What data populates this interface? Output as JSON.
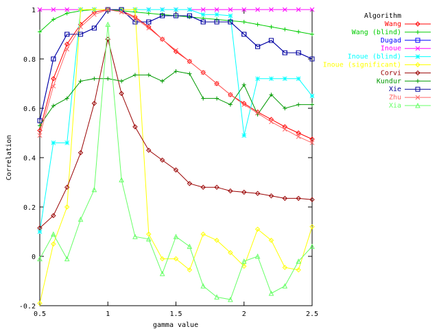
{
  "chart_data": {
    "type": "line",
    "xlabel": "gamma value",
    "ylabel": "Correlation",
    "xlim": [
      0.5,
      2.5
    ],
    "ylim": [
      -0.2,
      1.0
    ],
    "xticks": [
      "0.5",
      "1",
      "1.5",
      "2",
      "2.5"
    ],
    "yticks": [
      "-0.2",
      "0",
      "0.2",
      "0.4",
      "0.6",
      "0.8",
      "1"
    ],
    "legend_title": "Algorithm",
    "legend_position": "top-right",
    "grid": false,
    "x": [
      0.5,
      0.6,
      0.7,
      0.8,
      0.9,
      1.0,
      1.1,
      1.2,
      1.3,
      1.4,
      1.5,
      1.6,
      1.7,
      1.8,
      1.9,
      2.0,
      2.1,
      2.2,
      2.3,
      2.4,
      2.5
    ],
    "series": [
      {
        "name": "Wang",
        "color": "#ff0000",
        "marker": "diamond",
        "values": [
          0.51,
          0.72,
          0.86,
          0.94,
          0.99,
          1.0,
          0.995,
          0.97,
          0.93,
          0.88,
          0.83,
          0.79,
          0.745,
          0.7,
          0.655,
          0.62,
          0.585,
          0.555,
          0.525,
          0.5,
          0.475
        ]
      },
      {
        "name": "Wang (blind)",
        "color": "#00cc00",
        "marker": "plus",
        "values": [
          0.91,
          0.96,
          0.985,
          0.995,
          1.0,
          1.0,
          0.995,
          0.99,
          0.985,
          0.98,
          0.975,
          0.97,
          0.965,
          0.96,
          0.955,
          0.95,
          0.94,
          0.93,
          0.92,
          0.91,
          0.9
        ]
      },
      {
        "name": "Dugad",
        "color": "#0000ff",
        "marker": "square",
        "values": [
          0.55,
          0.8,
          0.9,
          0.9,
          0.925,
          1.0,
          1.0,
          0.95,
          0.95,
          0.975,
          0.975,
          0.975,
          0.95,
          0.95,
          0.95,
          0.9,
          0.85,
          0.875,
          0.825,
          0.825,
          0.8
        ]
      },
      {
        "name": "Inoue",
        "color": "#ff00ff",
        "marker": "cross",
        "values": [
          1.0,
          1.0,
          1.0,
          1.0,
          1.0,
          1.0,
          1.0,
          1.0,
          1.0,
          1.0,
          1.0,
          1.0,
          1.0,
          1.0,
          1.0,
          1.0,
          1.0,
          1.0,
          1.0,
          1.0,
          1.0
        ]
      },
      {
        "name": "Inoue (blind)",
        "color": "#00ffff",
        "marker": "star",
        "values": [
          0.1,
          0.46,
          0.46,
          1.0,
          1.0,
          1.0,
          1.0,
          1.0,
          1.0,
          1.0,
          1.0,
          1.0,
          0.98,
          0.98,
          0.975,
          0.49,
          0.72,
          0.72,
          0.72,
          0.72,
          0.65
        ]
      },
      {
        "name": "Inoue (significant)",
        "color": "#ffff00",
        "marker": "diamond",
        "values": [
          -0.19,
          0.05,
          0.2,
          1.0,
          1.0,
          1.0,
          1.0,
          1.0,
          0.09,
          -0.01,
          -0.01,
          -0.055,
          0.09,
          0.065,
          0.015,
          -0.04,
          0.11,
          0.065,
          -0.045,
          -0.055,
          0.12
        ]
      },
      {
        "name": "Corvi",
        "color": "#990000",
        "marker": "diamond",
        "values": [
          0.115,
          0.165,
          0.28,
          0.42,
          0.62,
          0.88,
          0.66,
          0.525,
          0.43,
          0.39,
          0.35,
          0.295,
          0.28,
          0.28,
          0.265,
          0.26,
          0.255,
          0.245,
          0.235,
          0.235,
          0.23
        ]
      },
      {
        "name": "Kundur",
        "color": "#009900",
        "marker": "plus",
        "values": [
          0.53,
          0.61,
          0.64,
          0.71,
          0.72,
          0.72,
          0.71,
          0.735,
          0.735,
          0.71,
          0.75,
          0.74,
          0.64,
          0.64,
          0.615,
          0.695,
          0.575,
          0.655,
          0.6,
          0.615,
          0.615
        ]
      },
      {
        "name": "Xie",
        "color": "#000099",
        "marker": "square",
        "values": [
          0.55,
          0.8,
          0.9,
          0.9,
          0.925,
          1.0,
          1.0,
          0.95,
          0.95,
          0.975,
          0.975,
          0.975,
          0.95,
          0.95,
          0.95,
          0.9,
          0.85,
          0.875,
          0.825,
          0.825,
          0.8
        ]
      },
      {
        "name": "Zhu",
        "color": "#ff6666",
        "marker": "cross",
        "values": [
          0.49,
          0.69,
          0.84,
          0.93,
          0.98,
          1.0,
          0.99,
          0.965,
          0.925,
          0.88,
          0.835,
          0.79,
          0.745,
          0.7,
          0.655,
          0.615,
          0.58,
          0.545,
          0.515,
          0.485,
          0.46
        ]
      },
      {
        "name": "Xia",
        "color": "#66ff66",
        "marker": "triangle",
        "values": [
          -0.01,
          0.09,
          -0.01,
          0.15,
          0.27,
          0.94,
          0.31,
          0.08,
          0.07,
          -0.07,
          0.08,
          0.04,
          -0.12,
          -0.165,
          -0.175,
          -0.02,
          0.0,
          -0.15,
          -0.12,
          -0.02,
          0.04
        ]
      }
    ]
  }
}
